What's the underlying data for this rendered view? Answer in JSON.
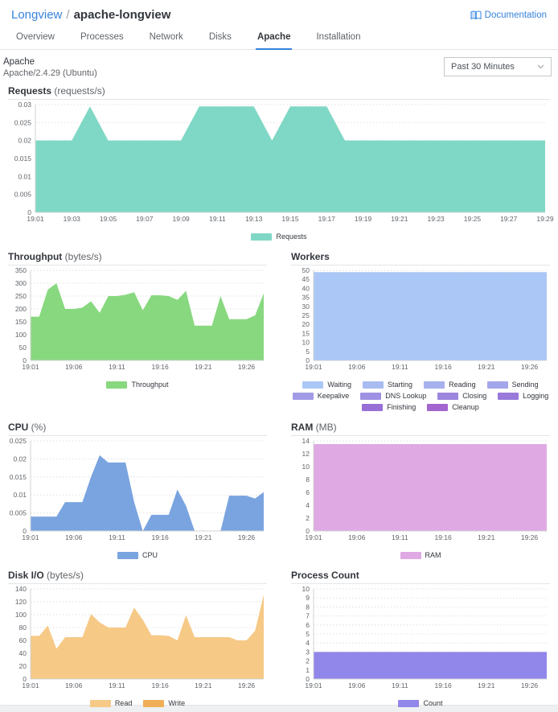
{
  "header": {
    "breadcrumb_root": "Longview",
    "breadcrumb_sep": "/",
    "breadcrumb_current": "apache-longview",
    "documentation_label": "Documentation"
  },
  "tabs": [
    {
      "label": "Overview",
      "active": false
    },
    {
      "label": "Processes",
      "active": false
    },
    {
      "label": "Network",
      "active": false
    },
    {
      "label": "Disks",
      "active": false
    },
    {
      "label": "Apache",
      "active": true
    },
    {
      "label": "Installation",
      "active": false
    }
  ],
  "meta": {
    "title": "Apache",
    "subtitle": "Apache/2.4.29 (Ubuntu)",
    "time_range_value": "Past 30 Minutes"
  },
  "colors": {
    "accent_blue": "#3683dc",
    "text_dark": "#32363c",
    "text_gray": "#606469",
    "border": "#e3e5e8",
    "grid": "#e0e0e0",
    "axis": "#d0d3d4"
  },
  "chart_data": [
    {
      "type": "area",
      "title": "Requests",
      "unit": "(requests/s)",
      "size": "full",
      "grid": true,
      "legend_position": "bottom-center",
      "ylim": [
        0,
        0.03
      ],
      "yticks": [
        0,
        0.005,
        0.01,
        0.015,
        0.02,
        0.025,
        0.03
      ],
      "xrange": [
        1,
        29
      ],
      "xticks": [
        {
          "m": 1,
          "label": "19:01"
        },
        {
          "m": 3,
          "label": "19:03"
        },
        {
          "m": 5,
          "label": "19:05"
        },
        {
          "m": 7,
          "label": "19:07"
        },
        {
          "m": 9,
          "label": "19:09"
        },
        {
          "m": 11,
          "label": "19:11"
        },
        {
          "m": 13,
          "label": "19:13"
        },
        {
          "m": 15,
          "label": "19:15"
        },
        {
          "m": 17,
          "label": "19:17"
        },
        {
          "m": 19,
          "label": "19:19"
        },
        {
          "m": 21,
          "label": "19:21"
        },
        {
          "m": 23,
          "label": "19:23"
        },
        {
          "m": 25,
          "label": "19:25"
        },
        {
          "m": 27,
          "label": "19:27"
        },
        {
          "m": 29,
          "label": "19:29"
        }
      ],
      "series": [
        {
          "name": "Requests",
          "color": "#7fd8c5",
          "values": [
            0.02,
            0.02,
            0.02,
            0.0295,
            0.02,
            0.02,
            0.02,
            0.02,
            0.02,
            0.0295,
            0.0295,
            0.0295,
            0.0295,
            0.02,
            0.0295,
            0.0295,
            0.0295,
            0.02,
            0.02,
            0.02,
            0.02,
            0.02,
            0.02,
            0.02,
            0.02,
            0.02,
            0.02,
            0.02,
            0.02
          ]
        }
      ]
    },
    {
      "type": "area",
      "title": "Throughput",
      "unit": "(bytes/s)",
      "size": "half",
      "grid": true,
      "legend_position": "bottom-center",
      "ylim": [
        0,
        350
      ],
      "yticks": [
        0,
        50,
        100,
        150,
        200,
        250,
        300,
        350
      ],
      "xrange": [
        1,
        28
      ],
      "xticks": [
        {
          "m": 1,
          "label": "19:01"
        },
        {
          "m": 6,
          "label": "19:06"
        },
        {
          "m": 11,
          "label": "19:11"
        },
        {
          "m": 16,
          "label": "19:16"
        },
        {
          "m": 21,
          "label": "19:21"
        },
        {
          "m": 26,
          "label": "19:26"
        }
      ],
      "series": [
        {
          "name": "Throughput",
          "color": "#88d87f",
          "values": [
            170,
            170,
            275,
            300,
            200,
            200,
            205,
            230,
            185,
            250,
            250,
            255,
            265,
            195,
            253,
            253,
            250,
            235,
            270,
            135,
            135,
            135,
            250,
            160,
            160,
            160,
            175,
            260
          ]
        }
      ]
    },
    {
      "type": "area",
      "title": "Workers",
      "unit": "",
      "size": "half",
      "grid": true,
      "legend_position": "bottom-center",
      "ylim": [
        0,
        50
      ],
      "yticks": [
        0,
        5,
        10,
        15,
        20,
        25,
        30,
        35,
        40,
        45,
        50
      ],
      "xrange": [
        1,
        28
      ],
      "xticks": [
        {
          "m": 1,
          "label": "19:01"
        },
        {
          "m": 6,
          "label": "19:06"
        },
        {
          "m": 11,
          "label": "19:11"
        },
        {
          "m": 16,
          "label": "19:16"
        },
        {
          "m": 21,
          "label": "19:21"
        },
        {
          "m": 26,
          "label": "19:26"
        }
      ],
      "series": [
        {
          "name": "Waiting",
          "color": "#abc7f6",
          "values": [
            49,
            49,
            49,
            49,
            49,
            49,
            49,
            49,
            49,
            49,
            49,
            49,
            49,
            49,
            49,
            49,
            49,
            49,
            49,
            49,
            49,
            49,
            49,
            49,
            49,
            49,
            49,
            49
          ]
        },
        {
          "name": "Starting",
          "color": "#a9bcf2",
          "values": [
            0,
            0,
            0,
            0,
            0,
            0,
            0,
            0,
            0,
            0,
            0,
            0,
            0,
            0,
            0,
            0,
            0,
            0,
            0,
            0,
            0,
            0,
            0,
            0,
            0,
            0,
            0,
            0
          ]
        },
        {
          "name": "Reading",
          "color": "#a6b1ee",
          "values": [
            0,
            0,
            0,
            0,
            0,
            0,
            0,
            0,
            0,
            0,
            0,
            0,
            0,
            0,
            0,
            0,
            0,
            0,
            0,
            0,
            0,
            0,
            0,
            0,
            0,
            0,
            0,
            0
          ]
        },
        {
          "name": "Sending",
          "color": "#a3a6ea",
          "values": [
            0,
            0,
            0,
            0,
            0,
            0,
            0,
            0,
            0,
            0,
            0,
            0,
            0,
            0,
            0,
            0,
            0,
            0,
            0,
            0,
            0,
            0,
            0,
            0,
            0,
            0,
            0,
            0
          ]
        },
        {
          "name": "Keepalive",
          "color": "#a19be6",
          "values": [
            0,
            0,
            0,
            0,
            0,
            0,
            0,
            0,
            0,
            0,
            0,
            0,
            0,
            0,
            0,
            0,
            0,
            0,
            0,
            0,
            0,
            0,
            0,
            0,
            0,
            0,
            0,
            0
          ]
        },
        {
          "name": "DNS Lookup",
          "color": "#9e90e2",
          "values": [
            0,
            0,
            0,
            0,
            0,
            0,
            0,
            0,
            0,
            0,
            0,
            0,
            0,
            0,
            0,
            0,
            0,
            0,
            0,
            0,
            0,
            0,
            0,
            0,
            0,
            0,
            0,
            0
          ]
        },
        {
          "name": "Closing",
          "color": "#9c85de",
          "values": [
            0,
            0,
            0,
            0,
            0,
            0,
            0,
            0,
            0,
            0,
            0,
            0,
            0,
            0,
            0,
            0,
            0,
            0,
            0,
            0,
            0,
            0,
            0,
            0,
            0,
            0,
            0,
            0
          ]
        },
        {
          "name": "Logging",
          "color": "#997ada",
          "values": [
            0,
            0,
            0,
            0,
            0,
            0,
            0,
            0,
            0,
            0,
            0,
            0,
            0,
            0,
            0,
            0,
            0,
            0,
            0,
            0,
            0,
            0,
            0,
            0,
            0,
            0,
            0,
            0
          ]
        },
        {
          "name": "Finishing",
          "color": "#976fd6",
          "values": [
            0,
            0,
            0,
            0,
            0,
            0,
            0,
            0,
            0,
            0,
            0,
            0,
            0,
            0,
            0,
            0,
            0,
            0,
            0,
            0,
            0,
            0,
            0,
            0,
            0,
            0,
            0,
            0
          ]
        },
        {
          "name": "Cleanup",
          "color": "#a365cf",
          "values": [
            0,
            0,
            0,
            0,
            0,
            0,
            0,
            0,
            0,
            0,
            0,
            0,
            0,
            0,
            0,
            0,
            0,
            0,
            0,
            0,
            0,
            0,
            0,
            0,
            0,
            0,
            0,
            0
          ]
        }
      ]
    },
    {
      "type": "area",
      "title": "CPU",
      "unit": "(%)",
      "size": "half",
      "grid": true,
      "legend_position": "bottom-center",
      "ylim": [
        0,
        0.025
      ],
      "yticks": [
        0,
        0.005,
        0.01,
        0.015,
        0.02,
        0.025
      ],
      "xrange": [
        1,
        28
      ],
      "xticks": [
        {
          "m": 1,
          "label": "19:01"
        },
        {
          "m": 6,
          "label": "19:06"
        },
        {
          "m": 11,
          "label": "19:11"
        },
        {
          "m": 16,
          "label": "19:16"
        },
        {
          "m": 21,
          "label": "19:21"
        },
        {
          "m": 26,
          "label": "19:26"
        }
      ],
      "series": [
        {
          "name": "CPU",
          "color": "#7aa4e0",
          "values": [
            0.004,
            0.004,
            0.004,
            0.004,
            0.008,
            0.008,
            0.008,
            0.015,
            0.021,
            0.019,
            0.019,
            0.019,
            0.008,
            0,
            0.0045,
            0.0045,
            0.0045,
            0.0115,
            0.007,
            0,
            0,
            0,
            0,
            0.0098,
            0.0098,
            0.0098,
            0.009,
            0.0108
          ]
        }
      ]
    },
    {
      "type": "area",
      "title": "RAM",
      "unit": "(MB)",
      "size": "half",
      "grid": true,
      "legend_position": "bottom-center",
      "ylim": [
        0,
        14
      ],
      "yticks": [
        0,
        2,
        4,
        6,
        8,
        10,
        12,
        14
      ],
      "xrange": [
        1,
        28
      ],
      "xticks": [
        {
          "m": 1,
          "label": "19:01"
        },
        {
          "m": 6,
          "label": "19:06"
        },
        {
          "m": 11,
          "label": "19:11"
        },
        {
          "m": 16,
          "label": "19:16"
        },
        {
          "m": 21,
          "label": "19:21"
        },
        {
          "m": 26,
          "label": "19:26"
        }
      ],
      "series": [
        {
          "name": "RAM",
          "color": "#dfa9e4",
          "values": [
            13.5,
            13.5,
            13.5,
            13.5,
            13.5,
            13.5,
            13.5,
            13.5,
            13.5,
            13.5,
            13.5,
            13.5,
            13.5,
            13.5,
            13.5,
            13.5,
            13.5,
            13.5,
            13.5,
            13.5,
            13.5,
            13.5,
            13.5,
            13.5,
            13.5,
            13.5,
            13.5,
            13.5
          ]
        }
      ]
    },
    {
      "type": "area",
      "title": "Disk I/O",
      "unit": "(bytes/s)",
      "size": "half",
      "grid": true,
      "legend_position": "bottom-center",
      "ylim": [
        0,
        140
      ],
      "yticks": [
        0,
        20,
        40,
        60,
        80,
        100,
        120,
        140
      ],
      "xrange": [
        1,
        28
      ],
      "xticks": [
        {
          "m": 1,
          "label": "19:01"
        },
        {
          "m": 6,
          "label": "19:06"
        },
        {
          "m": 11,
          "label": "19:11"
        },
        {
          "m": 16,
          "label": "19:16"
        },
        {
          "m": 21,
          "label": "19:21"
        },
        {
          "m": 26,
          "label": "19:26"
        }
      ],
      "series": [
        {
          "name": "Read",
          "color": "#f6c986",
          "values": [
            67,
            67,
            83,
            47,
            65,
            65,
            65,
            101,
            88,
            80,
            80,
            80,
            111,
            92,
            68,
            68,
            67,
            60,
            99,
            65,
            65,
            65,
            65,
            65,
            60,
            60,
            75,
            131
          ]
        },
        {
          "name": "Write",
          "color": "#f0ae57",
          "values": [
            0,
            0,
            0,
            0,
            0,
            0,
            0,
            0,
            0,
            0,
            0,
            0,
            0,
            0,
            0,
            0,
            0,
            0,
            0,
            0,
            0,
            0,
            0,
            0,
            0,
            0,
            0,
            0
          ]
        }
      ]
    },
    {
      "type": "area",
      "title": "Process Count",
      "unit": "",
      "size": "half",
      "grid": true,
      "legend_position": "bottom-center",
      "ylim": [
        0,
        10
      ],
      "yticks": [
        0,
        1,
        2,
        3,
        4,
        5,
        6,
        7,
        8,
        9,
        10
      ],
      "xrange": [
        1,
        28
      ],
      "xticks": [
        {
          "m": 1,
          "label": "19:01"
        },
        {
          "m": 6,
          "label": "19:06"
        },
        {
          "m": 11,
          "label": "19:11"
        },
        {
          "m": 16,
          "label": "19:16"
        },
        {
          "m": 21,
          "label": "19:21"
        },
        {
          "m": 26,
          "label": "19:26"
        }
      ],
      "series": [
        {
          "name": "Count",
          "color": "#9186ea",
          "values": [
            3,
            3,
            3,
            3,
            3,
            3,
            3,
            3,
            3,
            3,
            3,
            3,
            3,
            3,
            3,
            3,
            3,
            3,
            3,
            3,
            3,
            3,
            3,
            3,
            3,
            3,
            3,
            3
          ]
        }
      ]
    }
  ]
}
